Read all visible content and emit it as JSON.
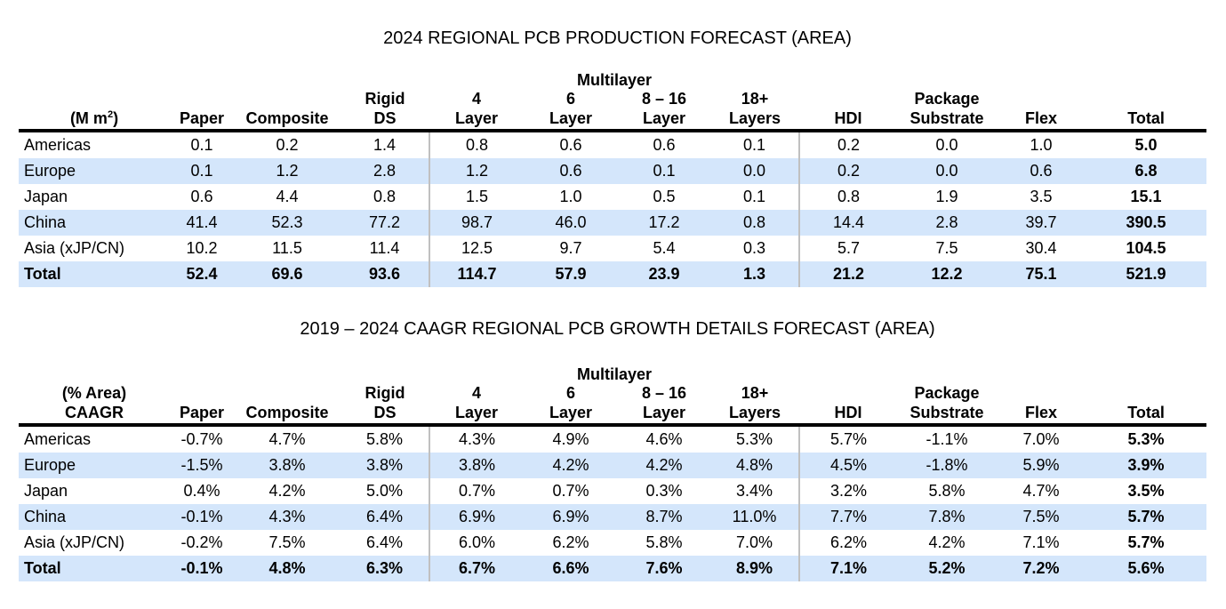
{
  "tables": [
    {
      "title": "2024 REGIONAL PCB PRODUCTION FORECAST (AREA)",
      "group_header": "Multilayer",
      "unit_label_line1": "",
      "unit_label_line2": "(M m",
      "unit_label_sup": "2",
      "unit_label_close": ")",
      "columns": [
        {
          "line1": "",
          "line2": "Paper"
        },
        {
          "line1": "",
          "line2": "Composite"
        },
        {
          "line1": "Rigid",
          "line2": "DS"
        },
        {
          "line1": "4",
          "line2": "Layer"
        },
        {
          "line1": "6",
          "line2": "Layer"
        },
        {
          "line1": "8 – 16",
          "line2": "Layer"
        },
        {
          "line1": "18+",
          "line2": "Layers"
        },
        {
          "line1": "",
          "line2": "HDI"
        },
        {
          "line1": "Package",
          "line2": "Substrate"
        },
        {
          "line1": "",
          "line2": "Flex"
        },
        {
          "line1": "",
          "line2": "Total"
        }
      ],
      "rows": [
        {
          "region": "Americas",
          "values": [
            "0.1",
            "0.2",
            "1.4",
            "0.8",
            "0.6",
            "0.6",
            "0.1",
            "0.2",
            "0.0",
            "1.0",
            "5.0"
          ]
        },
        {
          "region": "Europe",
          "values": [
            "0.1",
            "1.2",
            "2.8",
            "1.2",
            "0.6",
            "0.1",
            "0.0",
            "0.2",
            "0.0",
            "0.6",
            "6.8"
          ]
        },
        {
          "region": "Japan",
          "values": [
            "0.6",
            "4.4",
            "0.8",
            "1.5",
            "1.0",
            "0.5",
            "0.1",
            "0.8",
            "1.9",
            "3.5",
            "15.1"
          ]
        },
        {
          "region": "China",
          "values": [
            "41.4",
            "52.3",
            "77.2",
            "98.7",
            "46.0",
            "17.2",
            "0.8",
            "14.4",
            "2.8",
            "39.7",
            "390.5"
          ]
        },
        {
          "region": "Asia (xJP/CN)",
          "values": [
            "10.2",
            "11.5",
            "11.4",
            "12.5",
            "9.7",
            "5.4",
            "0.3",
            "5.7",
            "7.5",
            "30.4",
            "104.5"
          ]
        },
        {
          "region": "Total",
          "values": [
            "52.4",
            "69.6",
            "93.6",
            "114.7",
            "57.9",
            "23.9",
            "1.3",
            "21.2",
            "12.2",
            "75.1",
            "521.9"
          ]
        }
      ]
    },
    {
      "title": "2019 – 2024 CAAGR REGIONAL PCB GROWTH DETAILS FORECAST (AREA)",
      "group_header": "Multilayer",
      "unit_label_line1": "(% Area)",
      "unit_label_line2": "CAAGR",
      "unit_label_sup": "",
      "unit_label_close": "",
      "columns": [
        {
          "line1": "",
          "line2": "Paper"
        },
        {
          "line1": "",
          "line2": "Composite"
        },
        {
          "line1": "Rigid",
          "line2": "DS"
        },
        {
          "line1": "4",
          "line2": "Layer"
        },
        {
          "line1": "6",
          "line2": "Layer"
        },
        {
          "line1": "8 – 16",
          "line2": "Layer"
        },
        {
          "line1": "18+",
          "line2": "Layers"
        },
        {
          "line1": "",
          "line2": "HDI"
        },
        {
          "line1": "Package",
          "line2": "Substrate"
        },
        {
          "line1": "",
          "line2": "Flex"
        },
        {
          "line1": "",
          "line2": "Total"
        }
      ],
      "rows": [
        {
          "region": "Americas",
          "values": [
            "-0.7%",
            "4.7%",
            "5.8%",
            "4.3%",
            "4.9%",
            "4.6%",
            "5.3%",
            "5.7%",
            "-1.1%",
            "7.0%",
            "5.3%"
          ]
        },
        {
          "region": "Europe",
          "values": [
            "-1.5%",
            "3.8%",
            "3.8%",
            "3.8%",
            "4.2%",
            "4.2%",
            "4.8%",
            "4.5%",
            "-1.8%",
            "5.9%",
            "3.9%"
          ]
        },
        {
          "region": "Japan",
          "values": [
            "0.4%",
            "4.2%",
            "5.0%",
            "0.7%",
            "0.7%",
            "0.3%",
            "3.4%",
            "3.2%",
            "5.8%",
            "4.7%",
            "3.5%"
          ]
        },
        {
          "region": "China",
          "values": [
            "-0.1%",
            "4.3%",
            "6.4%",
            "6.9%",
            "6.9%",
            "8.7%",
            "11.0%",
            "7.7%",
            "7.8%",
            "7.5%",
            "5.7%"
          ]
        },
        {
          "region": "Asia (xJP/CN)",
          "values": [
            "-0.2%",
            "7.5%",
            "6.4%",
            "6.0%",
            "6.2%",
            "5.8%",
            "7.0%",
            "6.2%",
            "4.2%",
            "7.1%",
            "5.7%"
          ]
        },
        {
          "region": "Total",
          "values": [
            "-0.1%",
            "4.8%",
            "6.3%",
            "6.7%",
            "6.6%",
            "7.6%",
            "8.9%",
            "7.1%",
            "5.2%",
            "7.2%",
            "5.6%"
          ]
        }
      ]
    }
  ],
  "colors": {
    "row_shade": "#d4e6fb",
    "divider": "#c0c0c0",
    "header_rule": "#000000"
  }
}
